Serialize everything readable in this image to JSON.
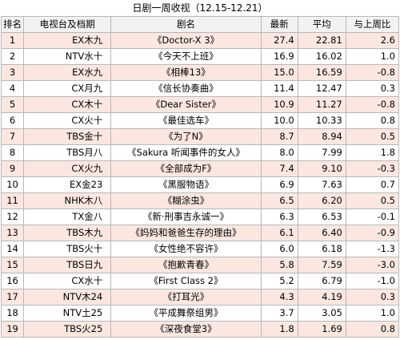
{
  "title": "日剧一周收视（12.15-12.21）",
  "columns": {
    "rank": "排名",
    "slot": "电视台及档期",
    "drama": "剧名",
    "latest": "最新",
    "average": "平均",
    "change": "与上周比"
  },
  "rows": [
    {
      "rank": "1",
      "slot": "EX木九",
      "drama": "《Doctor-X 3》",
      "latest": "27.4",
      "average": "22.81",
      "change": "2.6"
    },
    {
      "rank": "2",
      "slot": "NTV水十",
      "drama": "《今天不上班》",
      "latest": "16.9",
      "average": "16.02",
      "change": "1.0"
    },
    {
      "rank": "3",
      "slot": "EX水九",
      "drama": "《相棒13》",
      "latest": "15.0",
      "average": "16.59",
      "change": "-0.8"
    },
    {
      "rank": "4",
      "slot": "CX月九",
      "drama": "《信长协奏曲》",
      "latest": "11.4",
      "average": "12.47",
      "change": "0.3"
    },
    {
      "rank": "5",
      "slot": "CX木十",
      "drama": "《Dear Sister》",
      "latest": "10.9",
      "average": "11.27",
      "change": "-0.8"
    },
    {
      "rank": "6",
      "slot": "CX火十",
      "drama": "《最佳选车》",
      "latest": "10.0",
      "average": "10.33",
      "change": "0.8"
    },
    {
      "rank": "7",
      "slot": "TBS金十",
      "drama": "《为了N》",
      "latest": "8.7",
      "average": "8.94",
      "change": "0.5"
    },
    {
      "rank": "8",
      "slot": "TBS月八",
      "drama": "《Sakura 听闻事件的女人》",
      "latest": "8.0",
      "average": "7.99",
      "change": "1.8"
    },
    {
      "rank": "9",
      "slot": "CX火九",
      "drama": "《全部成为F》",
      "latest": "7.4",
      "average": "9.10",
      "change": "-0.3"
    },
    {
      "rank": "10",
      "slot": "EX金23",
      "drama": "《黑服物语》",
      "latest": "6.9",
      "average": "7.63",
      "change": "0.7"
    },
    {
      "rank": "11",
      "slot": "NHK木八",
      "drama": "《糊涂虫》",
      "latest": "6.5",
      "average": "6.20",
      "change": "0.5"
    },
    {
      "rank": "12",
      "slot": "TX金八",
      "drama": "《新·刑事吉永诚一》",
      "latest": "6.3",
      "average": "6.53",
      "change": "-0.1"
    },
    {
      "rank": "13",
      "slot": "TBS木九",
      "drama": "《妈妈和爸爸生存的理由》",
      "latest": "6.1",
      "average": "6.40",
      "change": "-0.9"
    },
    {
      "rank": "14",
      "slot": "TBS火十",
      "drama": "《女性绝不容许》",
      "latest": "6.0",
      "average": "6.18",
      "change": "-1.3"
    },
    {
      "rank": "15",
      "slot": "TBS日九",
      "drama": "《抱歉青春》",
      "latest": "5.8",
      "average": "7.59",
      "change": "-3.0"
    },
    {
      "rank": "16",
      "slot": "CX水十",
      "drama": "《First Class 2》",
      "latest": "5.2",
      "average": "6.79",
      "change": "-1.0"
    },
    {
      "rank": "17",
      "slot": "NTV木24",
      "drama": "《打耳光》",
      "latest": "4.3",
      "average": "4.19",
      "change": "0.3"
    },
    {
      "rank": "18",
      "slot": "NTV土25",
      "drama": "《平成舞祭组男》",
      "latest": "3.7",
      "average": "3.05",
      "change": "1.0"
    },
    {
      "rank": "19",
      "slot": "TBS火25",
      "drama": "《深夜食堂3》",
      "latest": "1.8",
      "average": "1.69",
      "change": "0.8"
    }
  ]
}
